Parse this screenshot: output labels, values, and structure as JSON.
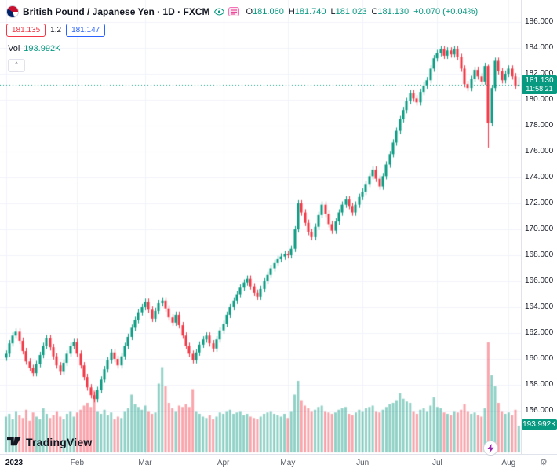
{
  "header": {
    "title": "British Pound / Japanese Yen · 1D · FXCM",
    "ohlc": {
      "o_label": "O",
      "o": "181.060",
      "h_label": "H",
      "h": "181.740",
      "l_label": "L",
      "l": "181.023",
      "c_label": "C",
      "c": "181.130",
      "change": "+0.070 (+0.04%)"
    },
    "sell_price": "181.135",
    "spread": "1.2",
    "buy_price": "181.147",
    "vol_label": "Vol",
    "vol_value": "193.992K"
  },
  "price_scale": {
    "current_price_label": "181.130",
    "countdown": "11:58:21",
    "volume_badge": "193.992K"
  },
  "footer": {
    "logo_text": "TradingView"
  },
  "icons": {
    "collapse": "^",
    "settings": "⚙"
  },
  "colors": {
    "up": "#089981",
    "down": "#f23645",
    "vol_up": "rgba(8,153,129,0.45)",
    "vol_down": "rgba(242,54,69,0.45)",
    "grid": "#f0f3fa",
    "axis_text": "#131722",
    "sell": "#f23645",
    "buy": "#2962ff",
    "badge": "#089981"
  },
  "chart_data": {
    "type": "candlestick+volume",
    "title": "British Pound / Japanese Yen",
    "interval": "1D",
    "exchange": "FXCM",
    "current_price": 181.13,
    "ylim": [
      152.7,
      187.7
    ],
    "y_ticks": [
      186,
      184,
      182,
      180,
      178,
      176,
      174,
      172,
      170,
      168,
      166,
      164,
      162,
      160,
      158,
      156
    ],
    "x_labels": [
      {
        "i": 0,
        "label": "2023",
        "bold": true
      },
      {
        "i": 21,
        "label": "Feb"
      },
      {
        "i": 41,
        "label": "Mar"
      },
      {
        "i": 64,
        "label": "Apr"
      },
      {
        "i": 83,
        "label": "May"
      },
      {
        "i": 105,
        "label": "Jun"
      },
      {
        "i": 127,
        "label": "Jul"
      },
      {
        "i": 148,
        "label": "Aug"
      }
    ],
    "volume_axis_max_k": 800,
    "last_volume_k": 193.992,
    "candle_format": [
      "open",
      "high",
      "low",
      "close",
      "volume_k"
    ],
    "candles": [
      [
        160.1,
        160.65,
        159.85,
        160.4,
        260
      ],
      [
        160.4,
        161.45,
        160.15,
        161.2,
        280
      ],
      [
        161.2,
        162.05,
        160.95,
        161.8,
        240
      ],
      [
        161.8,
        162.35,
        161.55,
        162.1,
        300
      ],
      [
        162.1,
        162.35,
        161.15,
        161.4,
        270
      ],
      [
        161.4,
        161.65,
        160.35,
        160.6,
        250
      ],
      [
        160.6,
        160.85,
        159.55,
        159.8,
        310
      ],
      [
        159.8,
        160.05,
        159.05,
        159.3,
        230
      ],
      [
        159.3,
        159.55,
        158.65,
        158.9,
        290
      ],
      [
        158.9,
        159.85,
        158.65,
        159.6,
        260
      ],
      [
        159.6,
        160.55,
        159.35,
        160.3,
        240
      ],
      [
        160.3,
        161.25,
        160.05,
        161.0,
        320
      ],
      [
        161.0,
        161.85,
        160.75,
        161.6,
        280
      ],
      [
        161.6,
        161.85,
        160.65,
        160.9,
        250
      ],
      [
        160.9,
        161.15,
        159.95,
        160.2,
        270
      ],
      [
        160.2,
        160.45,
        159.25,
        159.5,
        300
      ],
      [
        159.5,
        159.75,
        158.75,
        159.0,
        260
      ],
      [
        159.0,
        159.95,
        158.75,
        159.7,
        240
      ],
      [
        159.7,
        160.65,
        159.45,
        160.4,
        280
      ],
      [
        160.4,
        161.25,
        160.15,
        161.0,
        300
      ],
      [
        161.0,
        161.55,
        160.75,
        161.3,
        260
      ],
      [
        161.3,
        161.55,
        160.15,
        160.4,
        290
      ],
      [
        160.4,
        160.65,
        159.25,
        159.5,
        310
      ],
      [
        159.5,
        159.75,
        158.35,
        158.6,
        340
      ],
      [
        158.6,
        158.85,
        157.55,
        157.8,
        360
      ],
      [
        157.8,
        158.05,
        156.95,
        157.2,
        330
      ],
      [
        157.2,
        157.45,
        156.65,
        156.9,
        450
      ],
      [
        156.9,
        157.85,
        156.65,
        157.6,
        300
      ],
      [
        157.6,
        158.65,
        157.35,
        158.4,
        280
      ],
      [
        158.4,
        159.45,
        158.15,
        159.2,
        310
      ],
      [
        159.2,
        160.15,
        158.95,
        159.9,
        270
      ],
      [
        159.9,
        160.75,
        159.65,
        160.5,
        290
      ],
      [
        160.5,
        160.75,
        159.75,
        160.0,
        240
      ],
      [
        160.0,
        160.25,
        159.25,
        159.5,
        260
      ],
      [
        159.5,
        160.45,
        159.25,
        160.2,
        250
      ],
      [
        160.2,
        161.25,
        159.95,
        161.0,
        300
      ],
      [
        161.0,
        161.95,
        160.75,
        161.7,
        320
      ],
      [
        161.7,
        162.65,
        161.45,
        162.4,
        420
      ],
      [
        162.4,
        163.25,
        162.15,
        163.0,
        350
      ],
      [
        163.0,
        163.85,
        162.75,
        163.6,
        330
      ],
      [
        163.6,
        164.25,
        163.35,
        164.0,
        310
      ],
      [
        164.0,
        164.65,
        163.75,
        164.4,
        340
      ],
      [
        164.4,
        164.65,
        163.55,
        163.8,
        300
      ],
      [
        163.8,
        164.05,
        162.85,
        163.1,
        280
      ],
      [
        163.1,
        163.95,
        162.85,
        163.7,
        290
      ],
      [
        163.7,
        164.55,
        163.45,
        164.3,
        500
      ],
      [
        164.3,
        164.75,
        164.05,
        164.5,
        620
      ],
      [
        164.5,
        164.75,
        163.65,
        163.9,
        480
      ],
      [
        163.9,
        164.15,
        162.95,
        163.2,
        360
      ],
      [
        163.2,
        163.45,
        162.55,
        162.8,
        320
      ],
      [
        162.8,
        163.65,
        162.55,
        163.4,
        300
      ],
      [
        163.4,
        163.65,
        162.35,
        162.6,
        340
      ],
      [
        162.6,
        162.85,
        161.55,
        161.8,
        330
      ],
      [
        161.8,
        162.05,
        160.75,
        161.0,
        350
      ],
      [
        161.0,
        161.25,
        160.15,
        160.4,
        330
      ],
      [
        160.4,
        160.65,
        159.65,
        159.9,
        460
      ],
      [
        159.9,
        160.75,
        159.65,
        160.5,
        300
      ],
      [
        160.5,
        161.35,
        160.25,
        161.1,
        280
      ],
      [
        161.1,
        161.75,
        160.85,
        161.5,
        260
      ],
      [
        161.5,
        162.05,
        161.25,
        161.8,
        250
      ],
      [
        161.8,
        162.05,
        160.95,
        161.2,
        270
      ],
      [
        161.2,
        161.45,
        160.55,
        160.8,
        240
      ],
      [
        160.8,
        161.75,
        160.55,
        161.5,
        260
      ],
      [
        161.5,
        162.45,
        161.25,
        162.2,
        290
      ],
      [
        162.2,
        162.95,
        161.95,
        162.7,
        280
      ],
      [
        162.7,
        163.65,
        162.45,
        163.4,
        300
      ],
      [
        163.4,
        164.25,
        163.15,
        164.0,
        310
      ],
      [
        164.0,
        164.75,
        163.75,
        164.5,
        280
      ],
      [
        164.5,
        165.25,
        164.25,
        165.0,
        290
      ],
      [
        165.0,
        165.75,
        164.75,
        165.5,
        300
      ],
      [
        165.5,
        166.15,
        165.25,
        165.9,
        270
      ],
      [
        165.9,
        166.45,
        165.65,
        166.2,
        280
      ],
      [
        166.2,
        166.45,
        165.35,
        165.6,
        260
      ],
      [
        165.6,
        165.85,
        164.85,
        165.1,
        250
      ],
      [
        165.1,
        165.35,
        164.55,
        164.8,
        240
      ],
      [
        164.8,
        165.65,
        164.55,
        165.4,
        260
      ],
      [
        165.4,
        166.25,
        165.15,
        166.0,
        280
      ],
      [
        166.0,
        166.75,
        165.75,
        166.5,
        290
      ],
      [
        166.5,
        167.25,
        166.25,
        167.0,
        300
      ],
      [
        167.0,
        167.65,
        166.75,
        167.4,
        280
      ],
      [
        167.4,
        167.95,
        167.15,
        167.7,
        270
      ],
      [
        167.7,
        168.15,
        167.45,
        167.9,
        260
      ],
      [
        167.9,
        168.35,
        167.65,
        168.1,
        280
      ],
      [
        168.1,
        168.35,
        167.75,
        168.0,
        250
      ],
      [
        168.0,
        168.75,
        167.75,
        168.5,
        300
      ],
      [
        168.5,
        170.25,
        168.25,
        170.0,
        420
      ],
      [
        170.0,
        172.25,
        169.75,
        172.0,
        520
      ],
      [
        172.0,
        172.25,
        171.05,
        171.3,
        380
      ],
      [
        171.3,
        171.55,
        170.25,
        170.5,
        340
      ],
      [
        170.5,
        170.75,
        169.55,
        169.8,
        320
      ],
      [
        169.8,
        170.05,
        169.15,
        169.4,
        300
      ],
      [
        169.4,
        170.45,
        169.15,
        170.2,
        310
      ],
      [
        170.2,
        171.35,
        169.95,
        171.1,
        330
      ],
      [
        171.1,
        172.15,
        170.85,
        171.9,
        340
      ],
      [
        171.9,
        172.15,
        170.95,
        171.2,
        300
      ],
      [
        171.2,
        171.45,
        170.15,
        170.4,
        290
      ],
      [
        170.4,
        170.65,
        169.65,
        169.9,
        280
      ],
      [
        169.9,
        170.85,
        169.65,
        170.6,
        290
      ],
      [
        170.6,
        171.55,
        170.35,
        171.3,
        310
      ],
      [
        171.3,
        172.15,
        171.05,
        171.9,
        320
      ],
      [
        171.9,
        172.55,
        171.65,
        172.3,
        330
      ],
      [
        172.3,
        172.55,
        171.55,
        171.8,
        280
      ],
      [
        171.8,
        172.05,
        171.05,
        171.3,
        270
      ],
      [
        171.3,
        172.15,
        171.05,
        171.9,
        290
      ],
      [
        171.9,
        172.75,
        171.65,
        172.5,
        310
      ],
      [
        172.5,
        173.15,
        172.25,
        172.9,
        300
      ],
      [
        172.9,
        173.75,
        172.65,
        173.5,
        320
      ],
      [
        173.5,
        174.35,
        173.25,
        174.1,
        330
      ],
      [
        174.1,
        174.85,
        173.85,
        174.6,
        340
      ],
      [
        174.6,
        174.85,
        173.65,
        173.9,
        300
      ],
      [
        173.9,
        174.15,
        173.05,
        173.3,
        290
      ],
      [
        173.3,
        174.35,
        173.05,
        174.1,
        310
      ],
      [
        174.1,
        175.25,
        173.85,
        175.0,
        330
      ],
      [
        175.0,
        176.05,
        174.75,
        175.8,
        350
      ],
      [
        175.8,
        176.95,
        175.55,
        176.7,
        360
      ],
      [
        176.7,
        177.85,
        176.45,
        177.6,
        380
      ],
      [
        177.6,
        178.75,
        177.35,
        178.5,
        430
      ],
      [
        178.5,
        179.45,
        178.25,
        179.2,
        390
      ],
      [
        179.2,
        180.15,
        178.95,
        179.9,
        370
      ],
      [
        179.9,
        180.75,
        179.65,
        180.5,
        360
      ],
      [
        180.5,
        180.75,
        179.85,
        180.1,
        300
      ],
      [
        180.1,
        180.35,
        179.55,
        179.8,
        280
      ],
      [
        179.8,
        180.85,
        179.55,
        180.6,
        310
      ],
      [
        180.6,
        181.35,
        180.35,
        181.1,
        320
      ],
      [
        181.1,
        181.75,
        180.85,
        181.5,
        300
      ],
      [
        181.5,
        182.65,
        181.25,
        182.4,
        340
      ],
      [
        182.4,
        183.45,
        182.15,
        183.2,
        400
      ],
      [
        183.2,
        183.85,
        182.95,
        183.6,
        330
      ],
      [
        183.6,
        184.15,
        183.35,
        183.9,
        320
      ],
      [
        183.9,
        184.15,
        183.15,
        183.4,
        290
      ],
      [
        183.4,
        184.05,
        183.15,
        183.8,
        280
      ],
      [
        183.8,
        184.05,
        183.25,
        183.5,
        270
      ],
      [
        183.5,
        184.15,
        183.25,
        183.9,
        300
      ],
      [
        183.9,
        184.15,
        183.05,
        183.3,
        290
      ],
      [
        183.3,
        183.55,
        182.15,
        182.4,
        310
      ],
      [
        182.4,
        182.65,
        180.95,
        181.2,
        350
      ],
      [
        181.2,
        181.45,
        180.65,
        180.9,
        300
      ],
      [
        180.9,
        181.85,
        180.65,
        181.6,
        280
      ],
      [
        181.6,
        182.55,
        181.35,
        182.3,
        290
      ],
      [
        182.3,
        182.55,
        181.55,
        181.8,
        270
      ],
      [
        181.8,
        182.05,
        181.15,
        181.4,
        260
      ],
      [
        181.4,
        182.85,
        181.15,
        182.6,
        320
      ],
      [
        182.6,
        182.7,
        176.3,
        178.2,
        800
      ],
      [
        178.2,
        181.15,
        177.95,
        180.9,
        560
      ],
      [
        180.9,
        183.25,
        180.65,
        183.0,
        480
      ],
      [
        183.0,
        183.25,
        181.95,
        182.2,
        360
      ],
      [
        182.2,
        182.45,
        181.25,
        181.5,
        300
      ],
      [
        181.5,
        182.25,
        181.25,
        182.0,
        280
      ],
      [
        182.0,
        182.65,
        181.75,
        182.4,
        290
      ],
      [
        182.4,
        182.65,
        181.55,
        181.8,
        270
      ],
      [
        181.8,
        182.05,
        180.85,
        181.06,
        310
      ],
      [
        181.06,
        181.74,
        181.023,
        181.13,
        193.992
      ]
    ]
  }
}
